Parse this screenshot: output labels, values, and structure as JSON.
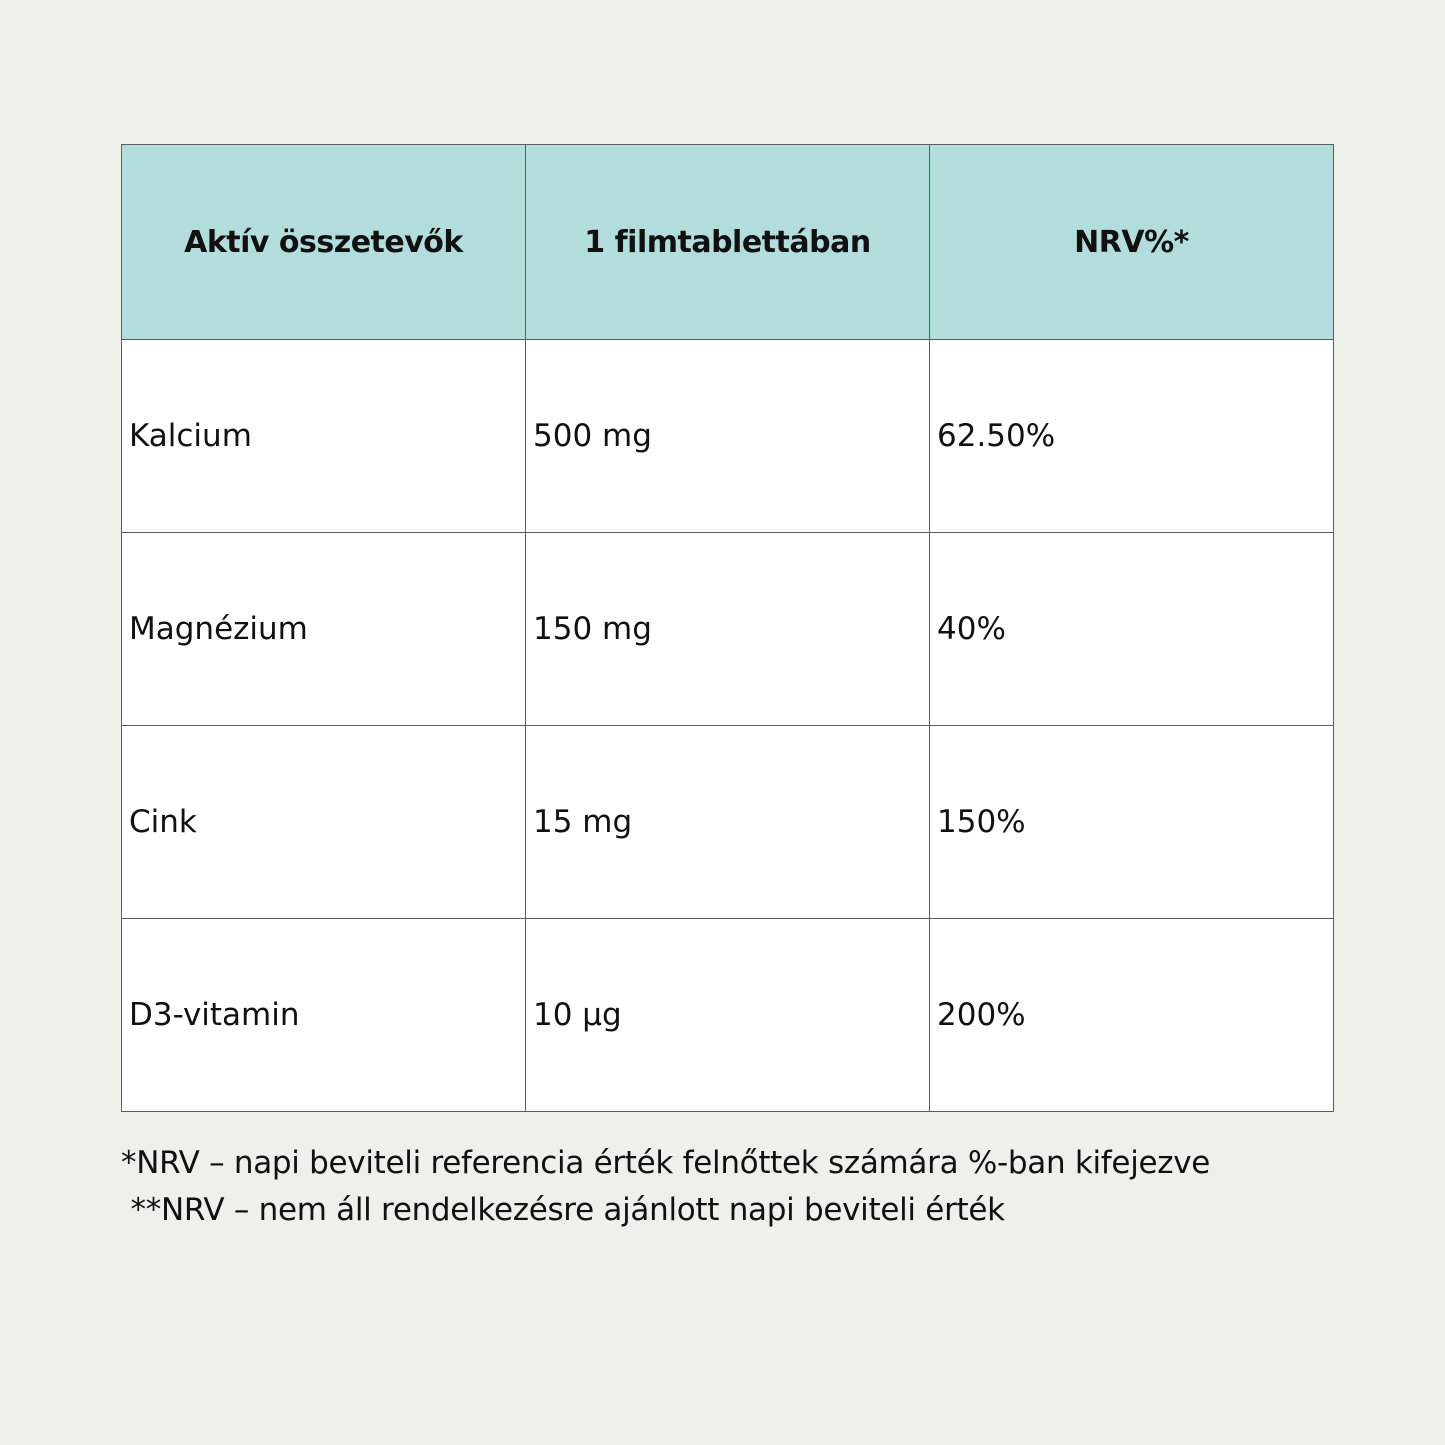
{
  "table": {
    "headers": [
      "Aktív összetevők",
      "1 filmtablettában",
      "NRV%*"
    ],
    "rows": [
      [
        "Kalcium",
        "500 mg",
        "62.50%"
      ],
      [
        "Magnézium",
        "150 mg",
        "40%"
      ],
      [
        "Cink",
        "15 mg",
        "150%"
      ],
      [
        "D3-vitamin",
        "10 µg",
        "200%"
      ]
    ]
  },
  "footnotes": [
    "*NRV – napi beviteli referencia érték felnőttek számára %-ban kifejezve",
    " **NRV – nem áll rendelkezésre ajánlott napi beviteli érték"
  ],
  "colors": {
    "background": "#eef0ea",
    "header": "#b3dddd",
    "border": "#5a5f5e"
  }
}
